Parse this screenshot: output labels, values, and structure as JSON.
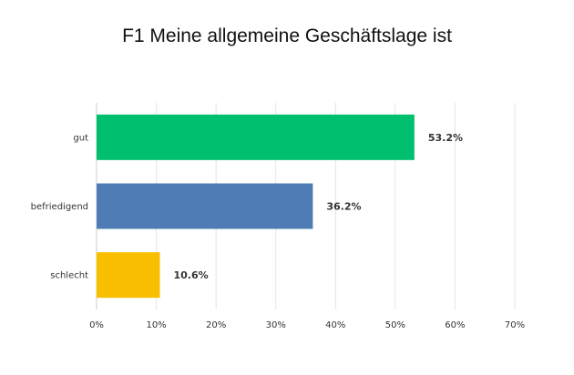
{
  "chart_data": {
    "type": "bar",
    "orientation": "horizontal",
    "title": "F1 Meine allgemeine Geschäftslage ist",
    "categories": [
      "gut",
      "befriedigend",
      "schlecht"
    ],
    "values": [
      53.2,
      36.2,
      10.6
    ],
    "value_labels": [
      "53.2%",
      "36.2%",
      "10.6%"
    ],
    "colors": [
      "#00bf6f",
      "#507cb6",
      "#f9be00"
    ],
    "xlim": [
      0,
      70
    ],
    "xticks": [
      "0%",
      "10%",
      "20%",
      "30%",
      "40%",
      "50%",
      "60%",
      "70%"
    ],
    "xlabel": "",
    "ylabel": "",
    "grid": true,
    "legend": false
  }
}
